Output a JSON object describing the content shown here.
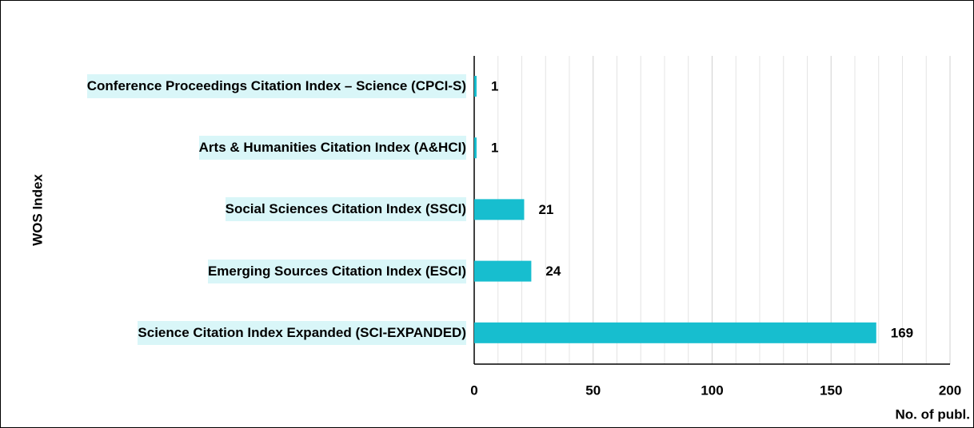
{
  "chart_data": {
    "type": "barh",
    "categories": [
      "Conference Proceedings Citation Index – Science (CPCI-S)",
      "Arts & Humanities Citation Index (A&HCI)",
      "Social Sciences Citation Index (SSCI)",
      "Emerging Sources Citation Index (ESCI)",
      "Science Citation Index Expanded (SCI-EXPANDED)"
    ],
    "values": [
      1,
      1,
      21,
      24,
      169
    ],
    "color": "#17becf",
    "label_background": "#d9f6f8",
    "xlim": [
      0,
      200
    ],
    "xticks": [
      0,
      50,
      100,
      150,
      200
    ],
    "minor_xticks": [
      10,
      20,
      30,
      40,
      60,
      70,
      80,
      90,
      110,
      120,
      130,
      140,
      160,
      170,
      180,
      190
    ],
    "grid": true,
    "xlabel": "No. of publ.",
    "ylabel": "WOS Index"
  }
}
